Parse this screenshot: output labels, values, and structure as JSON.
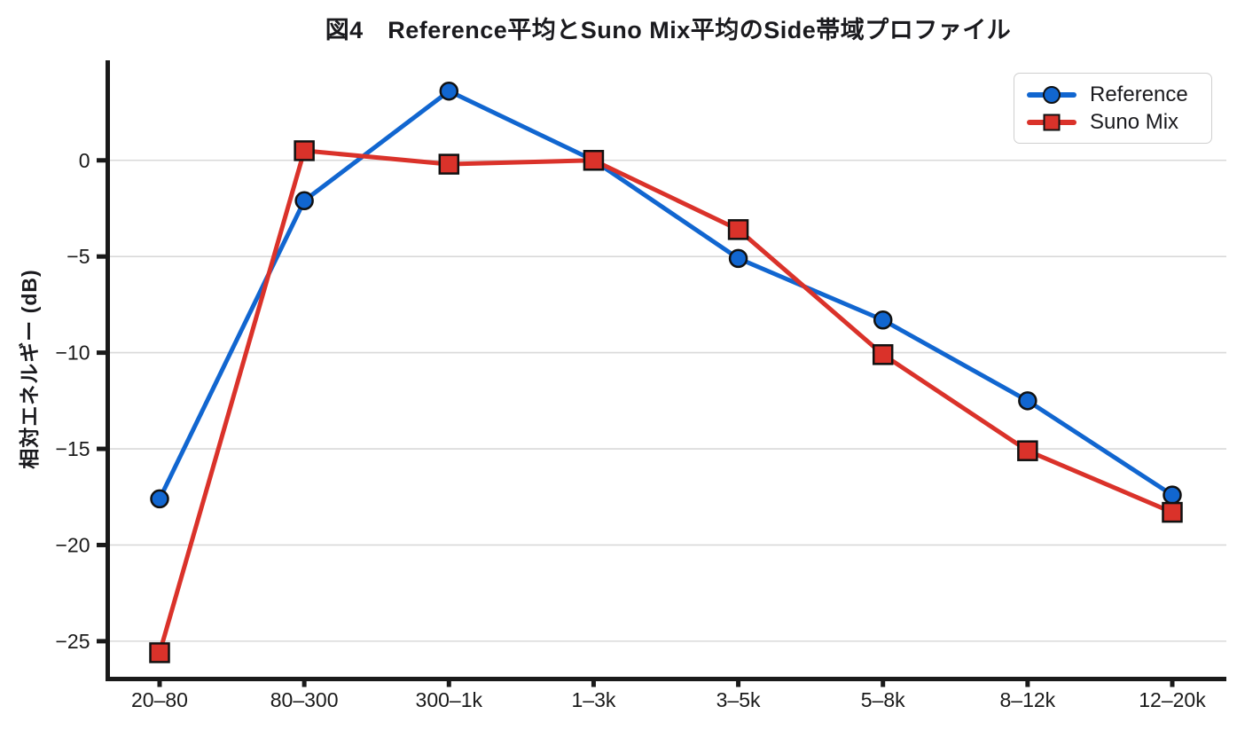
{
  "chart_data": {
    "type": "line",
    "title": "図4　Reference平均とSuno Mix平均のSide帯域プロファイル",
    "ylabel": "相対エネルギー (dB)",
    "xlabel": "",
    "categories": [
      "20–80",
      "80–300",
      "300–1k",
      "1–3k",
      "3–5k",
      "5–8k",
      "8–12k",
      "12–20k"
    ],
    "yticks": [
      0,
      -5,
      -10,
      -15,
      -20,
      -25
    ],
    "ytick_labels": [
      "0",
      "−5",
      "−10",
      "−15",
      "−20",
      "−25"
    ],
    "ylim": [
      -26.85,
      5.2
    ],
    "grid": "horizontal",
    "grid_color": "#d9d9d9",
    "axis_color": "#1a1a1a",
    "marker_edge_color": "#111111",
    "legend_position": "top-right",
    "series": [
      {
        "name": "Reference",
        "color": "#1166d0",
        "marker": "circle",
        "values": [
          -17.6,
          -2.1,
          3.6,
          0.0,
          -5.1,
          -8.3,
          -12.5,
          -17.4
        ]
      },
      {
        "name": "Suno Mix",
        "color": "#da322a",
        "marker": "square",
        "values": [
          -25.6,
          0.5,
          -0.2,
          0.0,
          -3.6,
          -10.1,
          -15.1,
          -18.3
        ]
      }
    ]
  }
}
